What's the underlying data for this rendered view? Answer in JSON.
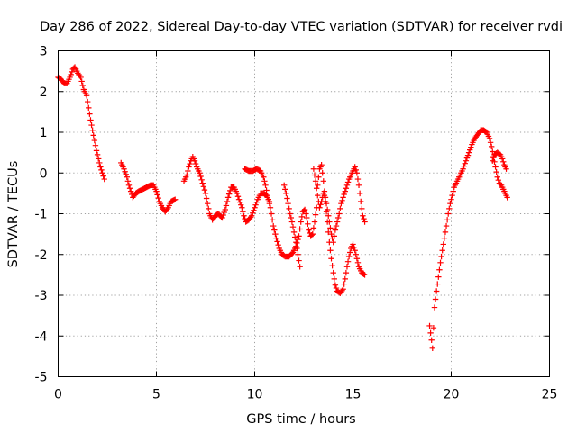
{
  "chart_data": {
    "type": "scatter",
    "title": "Day 286 of 2022, Sidereal Day-to-day VTEC variation (SDTVAR) for receiver rvdi",
    "xlabel": "GPS time / hours",
    "ylabel": "SDTVAR / TECUs",
    "xlim": [
      0,
      25
    ],
    "ylim": [
      -5,
      3
    ],
    "xticks": [
      0,
      5,
      10,
      15,
      20,
      25
    ],
    "yticks": [
      -5,
      -4,
      -3,
      -2,
      -1,
      0,
      1,
      2,
      3
    ],
    "grid": true,
    "marker": "plus",
    "color": "#ff0000",
    "series": [
      {
        "name": "SDTVAR",
        "segments": [
          [
            [
              0.0,
              2.35
            ],
            [
              0.15,
              2.3
            ],
            [
              0.3,
              2.2
            ],
            [
              0.45,
              2.2
            ],
            [
              0.6,
              2.35
            ],
            [
              0.75,
              2.55
            ],
            [
              0.85,
              2.6
            ],
            [
              1.0,
              2.45
            ],
            [
              1.15,
              2.35
            ],
            [
              1.3,
              2.05
            ],
            [
              1.45,
              1.9
            ],
            [
              1.55,
              1.6
            ],
            [
              1.65,
              1.3
            ],
            [
              1.75,
              1.05
            ],
            [
              1.85,
              0.8
            ],
            [
              1.95,
              0.55
            ],
            [
              2.05,
              0.35
            ],
            [
              2.15,
              0.15
            ],
            [
              2.25,
              0.0
            ],
            [
              2.35,
              -0.15
            ]
          ],
          [
            [
              3.2,
              0.25
            ],
            [
              3.35,
              0.1
            ],
            [
              3.5,
              -0.1
            ],
            [
              3.6,
              -0.3
            ],
            [
              3.7,
              -0.45
            ],
            [
              3.8,
              -0.6
            ],
            [
              3.95,
              -0.5
            ],
            [
              4.1,
              -0.45
            ],
            [
              4.3,
              -0.4
            ],
            [
              4.5,
              -0.35
            ],
            [
              4.7,
              -0.3
            ],
            [
              4.85,
              -0.3
            ],
            [
              5.0,
              -0.45
            ],
            [
              5.15,
              -0.7
            ],
            [
              5.3,
              -0.85
            ],
            [
              5.45,
              -0.95
            ],
            [
              5.6,
              -0.85
            ],
            [
              5.75,
              -0.7
            ],
            [
              5.95,
              -0.65
            ]
          ],
          [
            [
              6.4,
              -0.2
            ],
            [
              6.55,
              -0.05
            ],
            [
              6.65,
              0.15
            ],
            [
              6.75,
              0.3
            ],
            [
              6.85,
              0.4
            ],
            [
              6.95,
              0.3
            ],
            [
              7.05,
              0.15
            ],
            [
              7.2,
              0.0
            ],
            [
              7.35,
              -0.25
            ],
            [
              7.5,
              -0.5
            ],
            [
              7.6,
              -0.75
            ],
            [
              7.7,
              -1.0
            ],
            [
              7.85,
              -1.15
            ],
            [
              8.0,
              -1.05
            ],
            [
              8.15,
              -1.0
            ],
            [
              8.35,
              -1.1
            ],
            [
              8.5,
              -0.9
            ],
            [
              8.65,
              -0.6
            ],
            [
              8.8,
              -0.35
            ],
            [
              8.95,
              -0.35
            ],
            [
              9.1,
              -0.5
            ],
            [
              9.2,
              -0.65
            ],
            [
              9.35,
              -0.85
            ],
            [
              9.45,
              -1.05
            ],
            [
              9.55,
              -1.2
            ],
            [
              9.7,
              -1.15
            ],
            [
              9.85,
              -1.05
            ],
            [
              10.0,
              -0.85
            ],
            [
              10.15,
              -0.65
            ],
            [
              10.3,
              -0.5
            ],
            [
              10.45,
              -0.5
            ],
            [
              10.6,
              -0.55
            ],
            [
              10.75,
              -0.7
            ],
            [
              10.85,
              -1.0
            ],
            [
              10.95,
              -1.3
            ],
            [
              11.1,
              -1.6
            ],
            [
              11.25,
              -1.85
            ],
            [
              11.4,
              -2.0
            ],
            [
              11.55,
              -2.05
            ],
            [
              11.75,
              -2.05
            ],
            [
              11.95,
              -1.95
            ],
            [
              12.1,
              -1.8
            ],
            [
              12.25,
              -1.55
            ],
            [
              12.35,
              -1.2
            ],
            [
              12.45,
              -0.95
            ],
            [
              12.55,
              -0.9
            ],
            [
              12.65,
              -1.1
            ],
            [
              12.75,
              -1.4
            ],
            [
              12.85,
              -1.55
            ],
            [
              12.95,
              -1.5
            ],
            [
              13.05,
              -1.2
            ],
            [
              13.15,
              -0.85
            ],
            [
              13.2,
              -0.3
            ],
            [
              13.3,
              0.1
            ],
            [
              13.4,
              0.2
            ],
            [
              13.5,
              -0.2
            ],
            [
              13.6,
              -0.7
            ],
            [
              13.7,
              -1.2
            ],
            [
              13.8,
              -1.7
            ],
            [
              13.9,
              -2.1
            ],
            [
              14.0,
              -2.45
            ],
            [
              14.1,
              -2.75
            ],
            [
              14.2,
              -2.9
            ],
            [
              14.35,
              -2.95
            ],
            [
              14.5,
              -2.85
            ],
            [
              14.6,
              -2.6
            ],
            [
              14.7,
              -2.3
            ],
            [
              14.8,
              -2.05
            ],
            [
              14.9,
              -1.85
            ],
            [
              15.0,
              -1.75
            ],
            [
              15.1,
              -1.9
            ],
            [
              15.2,
              -2.1
            ],
            [
              15.3,
              -2.3
            ],
            [
              15.45,
              -2.45
            ],
            [
              15.6,
              -2.5
            ]
          ],
          [
            [
              9.5,
              0.1
            ],
            [
              9.7,
              0.05
            ],
            [
              9.9,
              0.05
            ],
            [
              10.1,
              0.1
            ],
            [
              10.3,
              0.05
            ],
            [
              10.45,
              -0.1
            ],
            [
              10.55,
              -0.3
            ],
            [
              10.65,
              -0.55
            ],
            [
              10.75,
              -0.75
            ]
          ],
          [
            [
              11.5,
              -0.3
            ],
            [
              11.6,
              -0.5
            ],
            [
              11.7,
              -0.75
            ],
            [
              11.8,
              -1.0
            ],
            [
              11.9,
              -1.2
            ],
            [
              12.0,
              -1.45
            ],
            [
              12.1,
              -1.7
            ],
            [
              12.2,
              -2.0
            ],
            [
              12.3,
              -2.3
            ]
          ],
          [
            [
              13.0,
              0.1
            ],
            [
              13.1,
              -0.2
            ],
            [
              13.2,
              -0.55
            ],
            [
              13.3,
              -0.85
            ],
            [
              13.4,
              -0.7
            ],
            [
              13.5,
              -0.5
            ],
            [
              13.6,
              -0.6
            ],
            [
              13.7,
              -0.9
            ],
            [
              13.8,
              -1.2
            ],
            [
              13.9,
              -1.5
            ],
            [
              14.0,
              -1.7
            ],
            [
              14.1,
              -1.4
            ],
            [
              14.2,
              -1.2
            ],
            [
              14.3,
              -1.0
            ],
            [
              14.4,
              -0.75
            ],
            [
              14.5,
              -0.6
            ],
            [
              14.6,
              -0.45
            ],
            [
              14.7,
              -0.3
            ],
            [
              14.8,
              -0.15
            ],
            [
              14.9,
              -0.05
            ],
            [
              15.0,
              0.05
            ],
            [
              15.1,
              0.15
            ],
            [
              15.2,
              0.0
            ],
            [
              15.3,
              -0.3
            ],
            [
              15.4,
              -0.7
            ],
            [
              15.5,
              -1.05
            ],
            [
              15.6,
              -1.2
            ]
          ],
          [
            [
              18.9,
              -3.75
            ],
            [
              19.0,
              -4.1
            ],
            [
              19.05,
              -4.3
            ],
            [
              19.1,
              -3.8
            ],
            [
              19.15,
              -3.3
            ],
            [
              19.25,
              -2.9
            ],
            [
              19.35,
              -2.55
            ],
            [
              19.45,
              -2.2
            ],
            [
              19.55,
              -1.9
            ],
            [
              19.65,
              -1.6
            ],
            [
              19.75,
              -1.3
            ],
            [
              19.85,
              -1.0
            ],
            [
              19.95,
              -0.75
            ],
            [
              20.05,
              -0.55
            ],
            [
              20.15,
              -0.35
            ],
            [
              20.3,
              -0.2
            ],
            [
              20.45,
              -0.05
            ],
            [
              20.6,
              0.1
            ],
            [
              20.75,
              0.3
            ],
            [
              20.9,
              0.5
            ],
            [
              21.05,
              0.7
            ],
            [
              21.2,
              0.85
            ],
            [
              21.35,
              0.95
            ],
            [
              21.5,
              1.05
            ],
            [
              21.65,
              1.05
            ],
            [
              21.8,
              1.0
            ],
            [
              21.95,
              0.85
            ],
            [
              22.05,
              0.65
            ],
            [
              22.15,
              0.4
            ],
            [
              22.25,
              0.15
            ],
            [
              22.35,
              -0.1
            ],
            [
              22.45,
              -0.25
            ],
            [
              22.55,
              -0.3
            ],
            [
              22.7,
              -0.45
            ],
            [
              22.85,
              -0.6
            ]
          ],
          [
            [
              22.1,
              0.3
            ],
            [
              22.2,
              0.45
            ],
            [
              22.35,
              0.5
            ],
            [
              22.5,
              0.45
            ],
            [
              22.6,
              0.35
            ],
            [
              22.7,
              0.2
            ],
            [
              22.8,
              0.1
            ]
          ]
        ]
      }
    ]
  }
}
